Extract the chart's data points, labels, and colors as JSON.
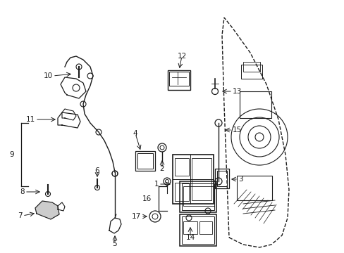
{
  "bg_color": "#ffffff",
  "fig_width": 4.89,
  "fig_height": 3.6,
  "dpi": 100,
  "line_color": "#1a1a1a",
  "label_fontsize": 7.5
}
